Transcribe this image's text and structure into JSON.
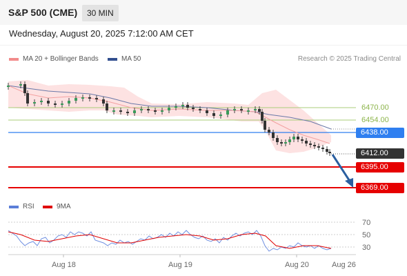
{
  "header": {
    "title": "S&P 500 (CME)",
    "interval": "30 MIN"
  },
  "datetime": "Wednesday, August 20, 2025 7:12:00 AM CET",
  "legend": {
    "ma20_label": "MA 20 + Bollinger Bands",
    "ma50_label": "MA 50",
    "credit": "Research © 2025 Trading Central"
  },
  "levels": {
    "level_1": "6470.00",
    "level_2": "6454.00",
    "pivot": "6438.00",
    "last_price": "6412.00",
    "target_1": "6395.00",
    "target_2": "6369.00"
  },
  "rsi_legend": {
    "rsi_label": "RSI",
    "ma_label": "9MA"
  },
  "rsi_axis": [
    "70",
    "50",
    "30"
  ],
  "x_axis": [
    "Aug 18",
    "Aug 19",
    "Aug 20",
    "Aug 26"
  ],
  "colors": {
    "bollinger_band": "#fbd3d3",
    "ma20": "#f08a8a",
    "ma50": "#4a5f99",
    "pivot": "#2f7ff0",
    "target": "#e60000",
    "level": "#8cb44a",
    "last": "#333333",
    "arrow": "#2b5fa0",
    "rsi": "#5b7ed8",
    "rsi_ma": "#e00000"
  }
}
